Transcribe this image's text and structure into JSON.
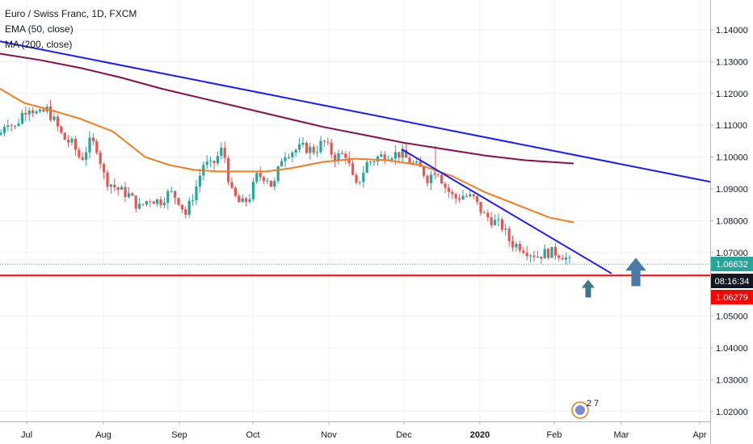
{
  "legend": {
    "symbol": "Euro / Swiss Franc, 1D, FXCM",
    "ema": "EMA (50, close)",
    "ma": "MA (200, close)"
  },
  "chart_data": {
    "type": "candlestick",
    "x_ticks": [
      "Jul",
      "Aug",
      "Sep",
      "Oct",
      "Nov",
      "Dec",
      "2020",
      "Feb",
      "Mar",
      "Apr"
    ],
    "y_ticks": [
      "1.14000",
      "1.13000",
      "1.12000",
      "1.11000",
      "1.10000",
      "1.09000",
      "1.08000",
      "1.07000",
      "1.05000",
      "1.04000",
      "1.03000",
      "1.02000"
    ],
    "ylim": [
      1.0183,
      1.1468
    ],
    "grid": true,
    "price_tags": [
      {
        "label": "1.06632",
        "value": 1.06632,
        "color": "#26a69a",
        "role": "last-price"
      },
      {
        "label": "08:16:34",
        "value": 1.0627,
        "color": "#131722",
        "role": "countdown"
      },
      {
        "label": "1.06279",
        "value": 1.06279,
        "color": "#ff0000",
        "role": "horizontal-line"
      }
    ],
    "candle_path": [
      [
        0,
        1.107
      ],
      [
        8,
        1.112
      ],
      [
        18,
        1.109
      ],
      [
        28,
        1.114
      ],
      [
        36,
        1.116
      ],
      [
        48,
        1.113
      ],
      [
        58,
        1.115
      ],
      [
        68,
        1.111
      ],
      [
        78,
        1.106
      ],
      [
        90,
        1.104
      ],
      [
        100,
        1.099
      ],
      [
        112,
        1.105
      ],
      [
        120,
        1.103
      ],
      [
        130,
        1.093
      ],
      [
        145,
        1.09
      ],
      [
        160,
        1.088
      ],
      [
        172,
        1.084
      ],
      [
        185,
        1.087
      ],
      [
        198,
        1.086
      ],
      [
        210,
        1.089
      ],
      [
        220,
        1.087
      ],
      [
        230,
        1.082
      ],
      [
        242,
        1.09
      ],
      [
        252,
        1.098
      ],
      [
        262,
        1.097
      ],
      [
        276,
        1.103
      ],
      [
        286,
        1.089
      ],
      [
        298,
        1.085
      ],
      [
        308,
        1.087
      ],
      [
        318,
        1.094
      ],
      [
        330,
        1.094
      ],
      [
        338,
        1.09
      ],
      [
        350,
        1.101
      ],
      [
        362,
        1.102
      ],
      [
        376,
        1.103
      ],
      [
        390,
        1.102
      ],
      [
        400,
        1.105
      ],
      [
        414,
        1.1
      ],
      [
        428,
        1.101
      ],
      [
        440,
        1.09
      ],
      [
        454,
        1.098
      ],
      [
        468,
        1.1
      ],
      [
        482,
        1.101
      ],
      [
        496,
        1.101
      ],
      [
        510,
        1.098
      ],
      [
        522,
        1.096
      ],
      [
        530,
        1.093
      ],
      [
        540,
        1.097
      ],
      [
        550,
        1.091
      ],
      [
        562,
        1.087
      ],
      [
        574,
        1.088
      ],
      [
        586,
        1.087
      ],
      [
        598,
        1.082
      ],
      [
        610,
        1.08
      ],
      [
        622,
        1.078
      ],
      [
        632,
        1.073
      ],
      [
        644,
        1.072
      ],
      [
        656,
        1.07
      ],
      [
        666,
        1.069
      ],
      [
        676,
        1.07
      ],
      [
        688,
        1.07
      ],
      [
        698,
        1.069
      ],
      [
        708,
        1.066
      ]
    ],
    "series": [
      {
        "name": "EMA (50, close)",
        "color": "#f57c1f",
        "points": [
          [
            0,
            1.1215
          ],
          [
            30,
            1.117
          ],
          [
            60,
            1.115
          ],
          [
            100,
            1.112
          ],
          [
            140,
            1.108
          ],
          [
            180,
            1.1
          ],
          [
            210,
            1.0975
          ],
          [
            240,
            1.096
          ],
          [
            270,
            1.0955
          ],
          [
            300,
            1.0955
          ],
          [
            330,
            1.0955
          ],
          [
            360,
            1.0965
          ],
          [
            400,
            1.0985
          ],
          [
            440,
            1.0995
          ],
          [
            480,
            1.099
          ],
          [
            520,
            1.0975
          ],
          [
            560,
            1.094
          ],
          [
            600,
            1.089
          ],
          [
            640,
            1.085
          ],
          [
            680,
            1.081
          ],
          [
            710,
            1.0795
          ]
        ]
      },
      {
        "name": "MA (200, close)",
        "color": "#880e4f",
        "points": [
          [
            0,
            1.1325
          ],
          [
            50,
            1.1305
          ],
          [
            100,
            1.128
          ],
          [
            150,
            1.125
          ],
          [
            200,
            1.1215
          ],
          [
            250,
            1.1185
          ],
          [
            300,
            1.1155
          ],
          [
            350,
            1.1125
          ],
          [
            400,
            1.1095
          ],
          [
            450,
            1.107
          ],
          [
            500,
            1.1045
          ],
          [
            550,
            1.1025
          ],
          [
            600,
            1.1005
          ],
          [
            650,
            1.099
          ],
          [
            710,
            1.098
          ]
        ]
      }
    ],
    "trendlines": [
      {
        "color": "#1a1aff",
        "from": [
          0,
          1.1364
        ],
        "to": [
          880,
          1.0922
        ]
      },
      {
        "color": "#1a1aff",
        "from": [
          497,
          1.1025
        ],
        "to": [
          757,
          1.0634
        ]
      }
    ],
    "hline": {
      "value": 1.06279,
      "color": "#ff0000"
    },
    "arrows": [
      {
        "x": 728,
        "value": 1.0589,
        "size": "small",
        "color": "#3d7a84"
      },
      {
        "x": 787,
        "value": 1.0643,
        "size": "large",
        "color": "#4a7aa9"
      }
    ],
    "badge": "2 7"
  }
}
